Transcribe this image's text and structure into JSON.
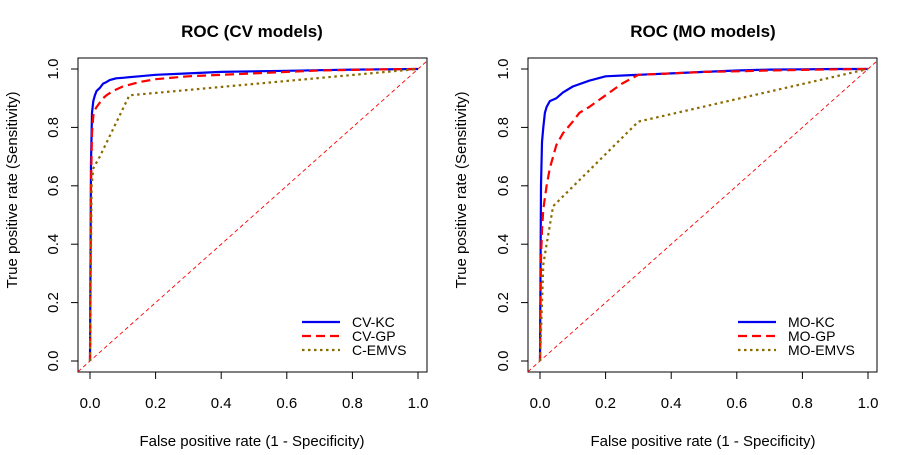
{
  "chart_data": [
    {
      "type": "line",
      "title": "ROC (CV models)",
      "xlabel": "False positive rate (1 - Specificity)",
      "ylabel": "True positive rate (Sensitivity)",
      "xlim": [
        0,
        1
      ],
      "ylim": [
        0,
        1
      ],
      "x_ticks": [
        "0.0",
        "0.2",
        "0.4",
        "0.6",
        "0.8",
        "1.0"
      ],
      "y_ticks": [
        "0.0",
        "0.2",
        "0.4",
        "0.6",
        "0.8",
        "1.0"
      ],
      "grid": false,
      "legend_position": "bottom-right",
      "reference_line": {
        "x": [
          0,
          1
        ],
        "y": [
          0,
          1
        ],
        "color": "#ff0000",
        "style": "dashed"
      },
      "series": [
        {
          "name": "CV-KC",
          "color": "#0000ee",
          "style": "solid",
          "x": [
            0,
            0.003,
            0.006,
            0.01,
            0.015,
            0.02,
            0.03,
            0.04,
            0.05,
            0.06,
            0.08,
            0.1,
            0.15,
            0.2,
            0.3,
            0.4,
            0.5,
            0.6,
            0.7,
            0.8,
            0.9,
            1.0
          ],
          "y": [
            0,
            0.68,
            0.85,
            0.89,
            0.91,
            0.925,
            0.935,
            0.95,
            0.955,
            0.962,
            0.968,
            0.97,
            0.975,
            0.98,
            0.985,
            0.99,
            0.992,
            0.994,
            0.996,
            0.998,
            0.999,
            1.0
          ]
        },
        {
          "name": "CV-GP",
          "color": "#ff0000",
          "style": "dashed",
          "x": [
            0,
            0.003,
            0.006,
            0.01,
            0.015,
            0.02,
            0.03,
            0.04,
            0.05,
            0.07,
            0.1,
            0.15,
            0.2,
            0.3,
            0.4,
            0.5,
            0.6,
            0.7,
            0.8,
            0.9,
            1.0
          ],
          "y": [
            0,
            0.6,
            0.78,
            0.84,
            0.86,
            0.87,
            0.885,
            0.9,
            0.91,
            0.925,
            0.94,
            0.955,
            0.965,
            0.975,
            0.98,
            0.985,
            0.99,
            0.995,
            0.997,
            0.999,
            1.0
          ]
        },
        {
          "name": "C-EMVS",
          "color": "#8b6b00",
          "style": "dotted",
          "x": [
            0,
            0.005,
            0.01,
            0.03,
            0.12,
            1.0
          ],
          "y": [
            0,
            0.6,
            0.66,
            0.7,
            0.91,
            1.0
          ]
        }
      ]
    },
    {
      "type": "line",
      "title": "ROC (MO models)",
      "xlabel": "False positive rate (1 - Specificity)",
      "ylabel": "True positive rate (Sensitivity)",
      "xlim": [
        0,
        1
      ],
      "ylim": [
        0,
        1
      ],
      "x_ticks": [
        "0.0",
        "0.2",
        "0.4",
        "0.6",
        "0.8",
        "1.0"
      ],
      "y_ticks": [
        "0.0",
        "0.2",
        "0.4",
        "0.6",
        "0.8",
        "1.0"
      ],
      "grid": false,
      "legend_position": "bottom-right",
      "reference_line": {
        "x": [
          0,
          1
        ],
        "y": [
          0,
          1
        ],
        "color": "#ff0000",
        "style": "dashed"
      },
      "series": [
        {
          "name": "MO-KC",
          "color": "#0000ee",
          "style": "solid",
          "x": [
            0,
            0.003,
            0.006,
            0.01,
            0.015,
            0.02,
            0.03,
            0.05,
            0.07,
            0.1,
            0.15,
            0.2,
            0.3,
            0.4,
            0.5,
            0.6,
            0.7,
            0.8,
            0.9,
            1.0
          ],
          "y": [
            0,
            0.6,
            0.75,
            0.8,
            0.85,
            0.87,
            0.89,
            0.9,
            0.92,
            0.94,
            0.96,
            0.975,
            0.98,
            0.985,
            0.99,
            0.995,
            0.998,
            0.999,
            1.0,
            1.0
          ]
        },
        {
          "name": "MO-GP",
          "color": "#ff0000",
          "style": "dashed",
          "x": [
            0,
            0.003,
            0.006,
            0.01,
            0.02,
            0.03,
            0.05,
            0.07,
            0.1,
            0.12,
            0.15,
            0.2,
            0.25,
            0.3,
            0.4,
            0.5,
            0.6,
            0.7,
            0.8,
            0.9,
            1.0
          ],
          "y": [
            0,
            0.35,
            0.45,
            0.52,
            0.6,
            0.66,
            0.74,
            0.78,
            0.82,
            0.85,
            0.87,
            0.91,
            0.95,
            0.98,
            0.985,
            0.99,
            0.992,
            0.995,
            0.997,
            0.999,
            1.0
          ]
        },
        {
          "name": "MO-EMVS",
          "color": "#8b6b00",
          "style": "dotted",
          "x": [
            0,
            0.01,
            0.02,
            0.04,
            0.3,
            1.0
          ],
          "y": [
            0,
            0.33,
            0.4,
            0.53,
            0.82,
            1.0
          ]
        }
      ]
    }
  ]
}
